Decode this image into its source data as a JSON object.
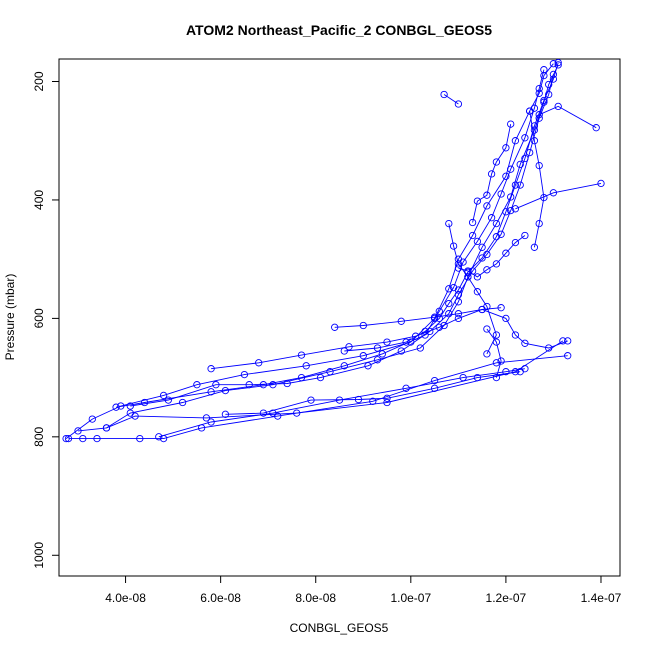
{
  "chart_data": {
    "type": "line",
    "title": "ATOM2 Northeast_Pacific_2 CONBGL_GEOS5",
    "xlabel": "CONBGL_GEOS5",
    "ylabel": "Pressure (mbar)",
    "xlim": [
      2.6e-08,
      1.44e-07
    ],
    "ylim": [
      1035,
      162
    ],
    "y_reversed": true,
    "grid": false,
    "series_color": "#0000ff",
    "x_ticks": [
      {
        "value": 4e-08,
        "label": "4.0e-08"
      },
      {
        "value": 6e-08,
        "label": "6.0e-08"
      },
      {
        "value": 8e-08,
        "label": "8.0e-08"
      },
      {
        "value": 1e-07,
        "label": "1.0e-07"
      },
      {
        "value": 1.2e-07,
        "label": "1.2e-07"
      },
      {
        "value": 1.4e-07,
        "label": "1.4e-07"
      }
    ],
    "y_ticks": [
      {
        "value": 200,
        "label": "200"
      },
      {
        "value": 400,
        "label": "400"
      },
      {
        "value": 600,
        "label": "600"
      },
      {
        "value": 800,
        "label": "800"
      },
      {
        "value": 1000,
        "label": "1000"
      }
    ],
    "series": [
      {
        "points": [
          [
            2.8e-08,
            803
          ],
          [
            3.1e-08,
            803
          ],
          [
            3.4e-08,
            803
          ],
          [
            4.3e-08,
            803
          ],
          [
            4.8e-08,
            803
          ],
          [
            5.6e-08,
            785
          ],
          [
            7.2e-08,
            765
          ],
          [
            9.2e-08,
            740
          ],
          [
            1.05e-07,
            705
          ],
          [
            1.18e-07,
            675
          ],
          [
            1.33e-07,
            663
          ]
        ]
      },
      {
        "points": [
          [
            3e-08,
            790
          ],
          [
            3.6e-08,
            785
          ],
          [
            4.2e-08,
            765
          ],
          [
            5.7e-08,
            768
          ],
          [
            7.6e-08,
            760
          ],
          [
            9.5e-08,
            742
          ],
          [
            1.22e-07,
            690
          ],
          [
            1.32e-07,
            638
          ]
        ]
      },
      {
        "points": [
          [
            2.75e-08,
            803
          ],
          [
            3.3e-08,
            770
          ],
          [
            3.9e-08,
            748
          ],
          [
            4.8e-08,
            730
          ],
          [
            5.5e-08,
            712
          ],
          [
            6.5e-08,
            695
          ],
          [
            7.8e-08,
            680
          ],
          [
            9e-08,
            663
          ],
          [
            1e-07,
            640
          ],
          [
            1.05e-07,
            600
          ],
          [
            1.08e-07,
            550
          ],
          [
            1.1e-07,
            500
          ],
          [
            1.13e-07,
            460
          ],
          [
            1.16e-07,
            410
          ],
          [
            1.2e-07,
            360
          ],
          [
            1.22e-07,
            300
          ],
          [
            1.25e-07,
            250
          ],
          [
            1.27e-07,
            220
          ],
          [
            1.28e-07,
            190
          ],
          [
            1.3e-07,
            170
          ]
        ]
      },
      {
        "points": [
          [
            3.6e-08,
            785
          ],
          [
            4.1e-08,
            760
          ],
          [
            5.2e-08,
            742
          ],
          [
            6.1e-08,
            722
          ],
          [
            7.1e-08,
            712
          ],
          [
            8.3e-08,
            690
          ],
          [
            9.3e-08,
            670
          ],
          [
            1.02e-07,
            650
          ],
          [
            1.07e-07,
            612
          ],
          [
            1.1e-07,
            572
          ],
          [
            1.12e-07,
            530
          ],
          [
            1.15e-07,
            480
          ],
          [
            1.18e-07,
            440
          ],
          [
            1.21e-07,
            395
          ],
          [
            1.23e-07,
            340
          ],
          [
            1.26e-07,
            282
          ],
          [
            1.28e-07,
            235
          ],
          [
            1.29e-07,
            205
          ],
          [
            1.31e-07,
            172
          ]
        ]
      },
      {
        "points": [
          [
            3.8e-08,
            750
          ],
          [
            4.4e-08,
            742
          ],
          [
            5.8e-08,
            724
          ],
          [
            6.9e-08,
            712
          ],
          [
            7.7e-08,
            700
          ],
          [
            8.6e-08,
            680
          ],
          [
            9.4e-08,
            660
          ],
          [
            1.03e-07,
            628
          ],
          [
            1.06e-07,
            588
          ],
          [
            1.09e-07,
            548
          ],
          [
            1.11e-07,
            505
          ],
          [
            1.14e-07,
            470
          ],
          [
            1.17e-07,
            430
          ],
          [
            1.19e-07,
            390
          ],
          [
            1.21e-07,
            348
          ],
          [
            1.24e-07,
            295
          ],
          [
            1.26e-07,
            245
          ],
          [
            1.27e-07,
            212
          ],
          [
            1.28e-07,
            180
          ]
        ]
      },
      {
        "points": [
          [
            4.1e-08,
            748
          ],
          [
            4.9e-08,
            738
          ],
          [
            5.9e-08,
            712
          ],
          [
            6.6e-08,
            712
          ],
          [
            7.4e-08,
            710
          ],
          [
            8.1e-08,
            700
          ],
          [
            9.1e-08,
            680
          ],
          [
            9.8e-08,
            655
          ],
          [
            1.04e-07,
            622
          ],
          [
            1.08e-07,
            592
          ],
          [
            1.1e-07,
            560
          ],
          [
            1.13e-07,
            520
          ],
          [
            1.16e-07,
            492
          ],
          [
            1.19e-07,
            458
          ],
          [
            1.21e-07,
            418
          ],
          [
            1.23e-07,
            375
          ],
          [
            1.25e-07,
            320
          ],
          [
            1.27e-07,
            262
          ],
          [
            1.29e-07,
            222
          ],
          [
            1.3e-07,
            188
          ]
        ]
      },
      {
        "points": [
          [
            4.7e-08,
            800
          ],
          [
            5.8e-08,
            775
          ],
          [
            7.1e-08,
            760
          ],
          [
            8.5e-08,
            738
          ],
          [
            9.9e-08,
            718
          ],
          [
            1.11e-07,
            700
          ],
          [
            1.2e-07,
            690
          ],
          [
            1.24e-07,
            685
          ]
        ]
      },
      {
        "points": [
          [
            5.8e-08,
            685
          ],
          [
            6.8e-08,
            675
          ],
          [
            7.7e-08,
            662
          ],
          [
            8.7e-08,
            648
          ],
          [
            9.5e-08,
            640
          ],
          [
            1.01e-07,
            630
          ],
          [
            1.06e-07,
            615
          ],
          [
            1.1e-07,
            600
          ],
          [
            1.15e-07,
            585
          ],
          [
            1.19e-07,
            582
          ]
        ]
      },
      {
        "points": [
          [
            6.1e-08,
            762
          ],
          [
            6.9e-08,
            760
          ],
          [
            7.9e-08,
            738
          ],
          [
            8.9e-08,
            737
          ],
          [
            9.5e-08,
            735
          ],
          [
            1.05e-07,
            718
          ],
          [
            1.14e-07,
            700
          ],
          [
            1.23e-07,
            690
          ]
        ]
      },
      {
        "points": [
          [
            8.4e-08,
            615
          ],
          [
            9e-08,
            612
          ],
          [
            9.8e-08,
            605
          ],
          [
            1.05e-07,
            598
          ],
          [
            1.1e-07,
            592
          ],
          [
            1.15e-07,
            585
          ],
          [
            1.2e-07,
            600
          ],
          [
            1.22e-07,
            628
          ],
          [
            1.24e-07,
            642
          ],
          [
            1.29e-07,
            650
          ],
          [
            1.33e-07,
            638
          ]
        ]
      },
      {
        "points": [
          [
            8.6e-08,
            655
          ],
          [
            9.3e-08,
            650
          ],
          [
            9.9e-08,
            640
          ],
          [
            1.03e-07,
            622
          ],
          [
            1.06e-07,
            600
          ],
          [
            1.08e-07,
            575
          ],
          [
            1.1e-07,
            552
          ],
          [
            1.12e-07,
            522
          ],
          [
            1.15e-07,
            498
          ],
          [
            1.18e-07,
            462
          ],
          [
            1.2e-07,
            420
          ],
          [
            1.22e-07,
            375
          ],
          [
            1.24e-07,
            330
          ],
          [
            1.26e-07,
            275
          ],
          [
            1.28e-07,
            232
          ],
          [
            1.3e-07,
            196
          ],
          [
            1.31e-07,
            168
          ]
        ]
      },
      {
        "points": [
          [
            1.07e-07,
            222
          ],
          [
            1.1e-07,
            238
          ]
        ]
      },
      {
        "points": [
          [
            1.39e-07,
            278
          ],
          [
            1.31e-07,
            242
          ],
          [
            1.27e-07,
            256
          ]
        ]
      },
      {
        "points": [
          [
            1.4e-07,
            372
          ],
          [
            1.3e-07,
            388
          ],
          [
            1.22e-07,
            415
          ]
        ]
      },
      {
        "points": [
          [
            1.08e-07,
            440
          ],
          [
            1.09e-07,
            478
          ],
          [
            1.1e-07,
            508
          ],
          [
            1.12e-07,
            530
          ],
          [
            1.14e-07,
            555
          ],
          [
            1.16e-07,
            580
          ],
          [
            1.18e-07,
            628
          ],
          [
            1.16e-07,
            660
          ]
        ]
      },
      {
        "points": [
          [
            1.16e-07,
            618
          ],
          [
            1.18e-07,
            640
          ],
          [
            1.19e-07,
            672
          ],
          [
            1.18e-07,
            700
          ]
        ]
      },
      {
        "points": [
          [
            1.13e-07,
            438
          ],
          [
            1.14e-07,
            402
          ],
          [
            1.16e-07,
            392
          ],
          [
            1.17e-07,
            356
          ],
          [
            1.18e-07,
            336
          ],
          [
            1.2e-07,
            312
          ],
          [
            1.21e-07,
            272
          ]
        ]
      },
      {
        "points": [
          [
            1.25e-07,
            250
          ],
          [
            1.26e-07,
            300
          ],
          [
            1.27e-07,
            342
          ],
          [
            1.28e-07,
            396
          ],
          [
            1.27e-07,
            440
          ],
          [
            1.26e-07,
            480
          ]
        ]
      },
      {
        "points": [
          [
            1.1e-07,
            515
          ],
          [
            1.12e-07,
            520
          ],
          [
            1.14e-07,
            530
          ],
          [
            1.16e-07,
            518
          ],
          [
            1.18e-07,
            508
          ],
          [
            1.2e-07,
            490
          ],
          [
            1.22e-07,
            472
          ],
          [
            1.24e-07,
            460
          ]
        ]
      }
    ]
  }
}
